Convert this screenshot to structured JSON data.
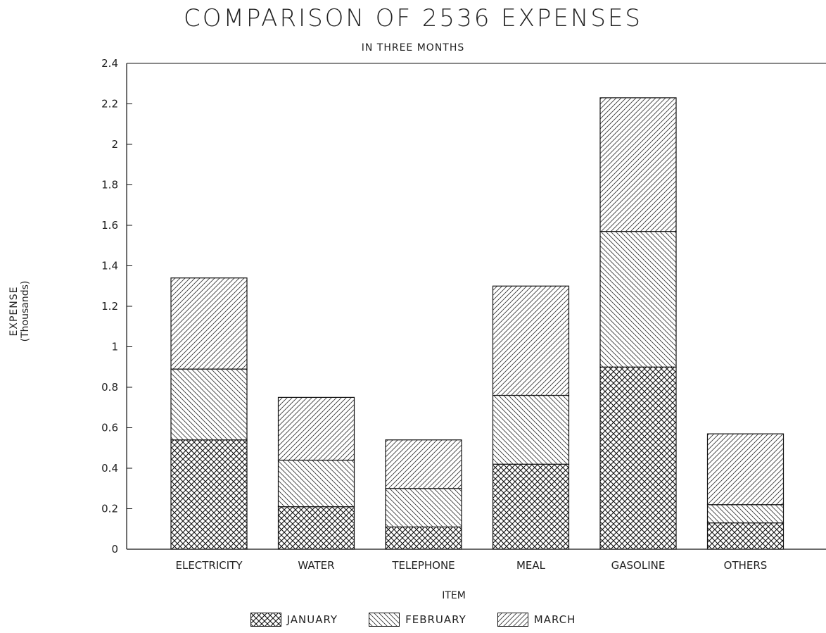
{
  "chart_data": {
    "type": "bar",
    "stacked": true,
    "title": "COMPARISON OF 2536 EXPENSES",
    "subtitle": "IN THREE MONTHS",
    "xlabel": "ITEM",
    "ylabel": "EXPENSE",
    "ylabel_unit": "(Thousands)",
    "ylim": [
      0,
      2.4
    ],
    "yticks": [
      0,
      0.2,
      0.4,
      0.6,
      0.8,
      1,
      1.2,
      1.4,
      1.6,
      1.8,
      2,
      2.2,
      2.4
    ],
    "categories": [
      "ELECTRICITY",
      "WATER",
      "TELEPHONE",
      "MEAL",
      "GASOLINE",
      "OTHERS"
    ],
    "series": [
      {
        "name": "JANUARY",
        "values": [
          0.54,
          0.21,
          0.11,
          0.42,
          0.9,
          0.13
        ]
      },
      {
        "name": "FEBRUARY",
        "values": [
          0.35,
          0.23,
          0.19,
          0.34,
          0.67,
          0.09
        ]
      },
      {
        "name": "MARCH",
        "values": [
          0.45,
          0.31,
          0.24,
          0.54,
          0.66,
          0.35
        ]
      }
    ],
    "legend_position": "bottom",
    "grid": false
  }
}
